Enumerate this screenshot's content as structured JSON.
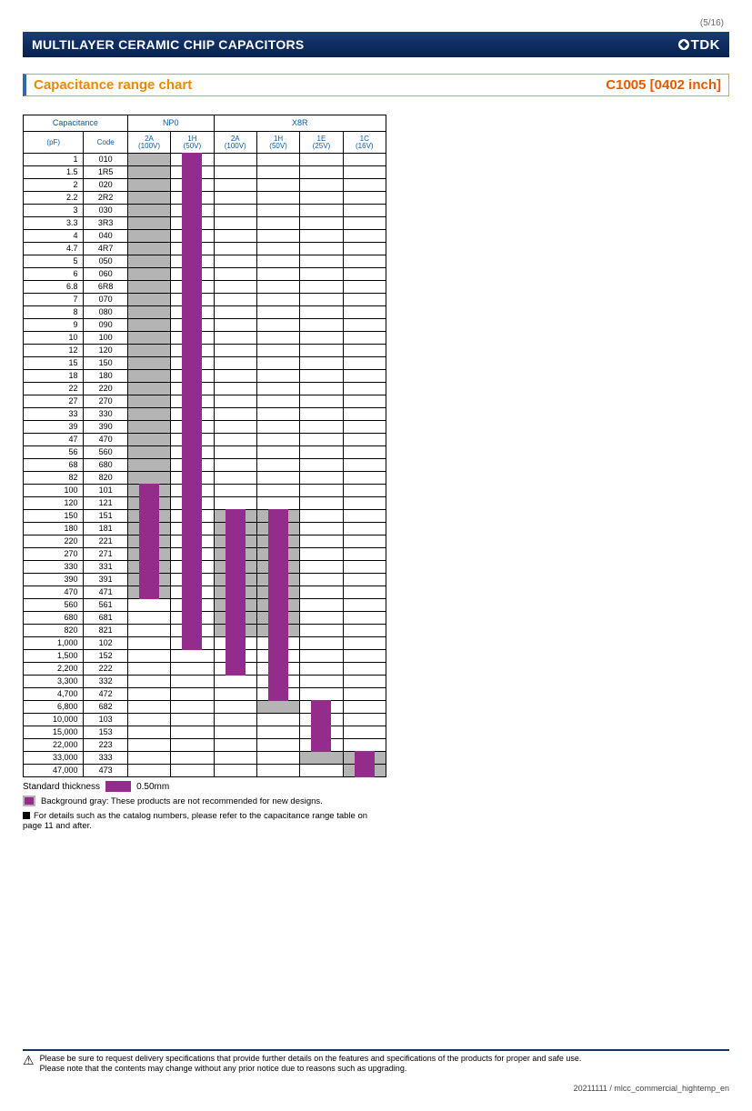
{
  "page_number": "(5/16)",
  "header_title": "MULTILAYER CERAMIC CHIP CAPACITORS",
  "header_logo": "TDK",
  "sub_left": "Capacitance range chart",
  "sub_right": "C1005 [0402 inch]",
  "colors": {
    "bar": "#942c8b",
    "gray": "#b4b4b4",
    "header_bg": "#0e2d60",
    "accent_blue": "#0b5aa8",
    "accent_orange": "#e88b00",
    "accent_red": "#e85a00"
  },
  "table": {
    "groups": [
      {
        "label": "Capacitance",
        "span": 2,
        "subs": [
          {
            "label": "(pF)"
          },
          {
            "label": "Code"
          }
        ]
      },
      {
        "label": "NP0",
        "span": 2,
        "subs": [
          {
            "label": "2A\n(100V)"
          },
          {
            "label": "1H\n(50V)"
          }
        ]
      },
      {
        "label": "X8R",
        "span": 4,
        "subs": [
          {
            "label": "2A\n(100V)"
          },
          {
            "label": "1H\n(50V)"
          },
          {
            "label": "1E\n(25V)"
          },
          {
            "label": "1C\n(16V)"
          }
        ]
      }
    ],
    "rows": [
      {
        "pf": "1",
        "code": "010",
        "c": [
          {
            "g": true
          },
          {
            "b": true
          },
          {},
          {},
          {},
          {}
        ]
      },
      {
        "pf": "1.5",
        "code": "1R5",
        "c": [
          {
            "g": true
          },
          {
            "b": true
          },
          {},
          {},
          {},
          {}
        ]
      },
      {
        "pf": "2",
        "code": "020",
        "c": [
          {
            "g": true
          },
          {
            "b": true
          },
          {},
          {},
          {},
          {}
        ]
      },
      {
        "pf": "2.2",
        "code": "2R2",
        "c": [
          {
            "g": true
          },
          {
            "b": true
          },
          {},
          {},
          {},
          {}
        ]
      },
      {
        "pf": "3",
        "code": "030",
        "c": [
          {
            "g": true
          },
          {
            "b": true
          },
          {},
          {},
          {},
          {}
        ]
      },
      {
        "pf": "3.3",
        "code": "3R3",
        "c": [
          {
            "g": true
          },
          {
            "b": true
          },
          {},
          {},
          {},
          {}
        ]
      },
      {
        "pf": "4",
        "code": "040",
        "c": [
          {
            "g": true
          },
          {
            "b": true
          },
          {},
          {},
          {},
          {}
        ]
      },
      {
        "pf": "4.7",
        "code": "4R7",
        "c": [
          {
            "g": true
          },
          {
            "b": true
          },
          {},
          {},
          {},
          {}
        ]
      },
      {
        "pf": "5",
        "code": "050",
        "c": [
          {
            "g": true
          },
          {
            "b": true
          },
          {},
          {},
          {},
          {}
        ]
      },
      {
        "pf": "6",
        "code": "060",
        "c": [
          {
            "g": true
          },
          {
            "b": true
          },
          {},
          {},
          {},
          {}
        ]
      },
      {
        "pf": "6.8",
        "code": "6R8",
        "c": [
          {
            "g": true
          },
          {
            "b": true
          },
          {},
          {},
          {},
          {}
        ]
      },
      {
        "pf": "7",
        "code": "070",
        "c": [
          {
            "g": true
          },
          {
            "b": true
          },
          {},
          {},
          {},
          {}
        ]
      },
      {
        "pf": "8",
        "code": "080",
        "c": [
          {
            "g": true
          },
          {
            "b": true
          },
          {},
          {},
          {},
          {}
        ]
      },
      {
        "pf": "9",
        "code": "090",
        "c": [
          {
            "g": true
          },
          {
            "b": true
          },
          {},
          {},
          {},
          {}
        ]
      },
      {
        "pf": "10",
        "code": "100",
        "c": [
          {
            "g": true
          },
          {
            "b": true
          },
          {},
          {},
          {},
          {}
        ]
      },
      {
        "pf": "12",
        "code": "120",
        "c": [
          {
            "g": true
          },
          {
            "b": true
          },
          {},
          {},
          {},
          {}
        ]
      },
      {
        "pf": "15",
        "code": "150",
        "c": [
          {
            "g": true
          },
          {
            "b": true
          },
          {},
          {},
          {},
          {}
        ]
      },
      {
        "pf": "18",
        "code": "180",
        "c": [
          {
            "g": true
          },
          {
            "b": true
          },
          {},
          {},
          {},
          {}
        ]
      },
      {
        "pf": "22",
        "code": "220",
        "c": [
          {
            "g": true
          },
          {
            "b": true
          },
          {},
          {},
          {},
          {}
        ]
      },
      {
        "pf": "27",
        "code": "270",
        "c": [
          {
            "g": true
          },
          {
            "b": true
          },
          {},
          {},
          {},
          {}
        ]
      },
      {
        "pf": "33",
        "code": "330",
        "c": [
          {
            "g": true
          },
          {
            "b": true
          },
          {},
          {},
          {},
          {}
        ]
      },
      {
        "pf": "39",
        "code": "390",
        "c": [
          {
            "g": true
          },
          {
            "b": true
          },
          {},
          {},
          {},
          {}
        ]
      },
      {
        "pf": "47",
        "code": "470",
        "c": [
          {
            "g": true
          },
          {
            "b": true
          },
          {},
          {},
          {},
          {}
        ]
      },
      {
        "pf": "56",
        "code": "560",
        "c": [
          {
            "g": true
          },
          {
            "b": true
          },
          {},
          {},
          {},
          {}
        ]
      },
      {
        "pf": "68",
        "code": "680",
        "c": [
          {
            "g": true
          },
          {
            "b": true
          },
          {},
          {},
          {},
          {}
        ]
      },
      {
        "pf": "82",
        "code": "820",
        "c": [
          {
            "g": true
          },
          {
            "b": true
          },
          {},
          {},
          {},
          {}
        ]
      },
      {
        "pf": "100",
        "code": "101",
        "c": [
          {
            "g": true,
            "b": true
          },
          {
            "b": true
          },
          {},
          {},
          {},
          {}
        ]
      },
      {
        "pf": "120",
        "code": "121",
        "c": [
          {
            "g": true,
            "b": true
          },
          {
            "b": true
          },
          {},
          {},
          {},
          {}
        ]
      },
      {
        "pf": "150",
        "code": "151",
        "c": [
          {
            "g": true,
            "b": true
          },
          {
            "b": true
          },
          {
            "g": true,
            "b": true
          },
          {
            "g": true,
            "b": true
          },
          {},
          {}
        ]
      },
      {
        "pf": "180",
        "code": "181",
        "c": [
          {
            "g": true,
            "b": true
          },
          {
            "b": true
          },
          {
            "g": true,
            "b": true
          },
          {
            "g": true,
            "b": true
          },
          {},
          {}
        ]
      },
      {
        "pf": "220",
        "code": "221",
        "c": [
          {
            "g": true,
            "b": true
          },
          {
            "b": true
          },
          {
            "g": true,
            "b": true
          },
          {
            "g": true,
            "b": true
          },
          {},
          {}
        ]
      },
      {
        "pf": "270",
        "code": "271",
        "c": [
          {
            "g": true,
            "b": true
          },
          {
            "b": true
          },
          {
            "g": true,
            "b": true
          },
          {
            "g": true,
            "b": true
          },
          {},
          {}
        ]
      },
      {
        "pf": "330",
        "code": "331",
        "c": [
          {
            "g": true,
            "b": true
          },
          {
            "b": true
          },
          {
            "g": true,
            "b": true
          },
          {
            "g": true,
            "b": true
          },
          {},
          {}
        ]
      },
      {
        "pf": "390",
        "code": "391",
        "c": [
          {
            "g": true,
            "b": true
          },
          {
            "b": true
          },
          {
            "g": true,
            "b": true
          },
          {
            "g": true,
            "b": true
          },
          {},
          {}
        ]
      },
      {
        "pf": "470",
        "code": "471",
        "c": [
          {
            "g": true,
            "b": true
          },
          {
            "b": true
          },
          {
            "g": true,
            "b": true
          },
          {
            "g": true,
            "b": true
          },
          {},
          {}
        ]
      },
      {
        "pf": "560",
        "code": "561",
        "c": [
          {},
          {
            "b": true
          },
          {
            "g": true,
            "b": true
          },
          {
            "g": true,
            "b": true
          },
          {},
          {}
        ]
      },
      {
        "pf": "680",
        "code": "681",
        "c": [
          {},
          {
            "b": true
          },
          {
            "g": true,
            "b": true
          },
          {
            "g": true,
            "b": true
          },
          {},
          {}
        ]
      },
      {
        "pf": "820",
        "code": "821",
        "c": [
          {},
          {
            "b": true
          },
          {
            "g": true,
            "b": true
          },
          {
            "g": true,
            "b": true
          },
          {},
          {}
        ]
      },
      {
        "pf": "1,000",
        "code": "102",
        "c": [
          {},
          {
            "b": true
          },
          {
            "b": true
          },
          {
            "b": true
          },
          {},
          {}
        ]
      },
      {
        "pf": "1,500",
        "code": "152",
        "c": [
          {},
          {},
          {
            "b": true
          },
          {
            "b": true
          },
          {},
          {}
        ]
      },
      {
        "pf": "2,200",
        "code": "222",
        "c": [
          {},
          {},
          {
            "b": true
          },
          {
            "b": true
          },
          {},
          {}
        ]
      },
      {
        "pf": "3,300",
        "code": "332",
        "c": [
          {},
          {},
          {},
          {
            "b": true
          },
          {},
          {}
        ]
      },
      {
        "pf": "4,700",
        "code": "472",
        "c": [
          {},
          {},
          {},
          {
            "b": true
          },
          {},
          {}
        ]
      },
      {
        "pf": "6,800",
        "code": "682",
        "c": [
          {},
          {},
          {},
          {
            "g": true
          },
          {
            "b": true
          },
          {}
        ]
      },
      {
        "pf": "10,000",
        "code": "103",
        "c": [
          {},
          {},
          {},
          {},
          {
            "b": true
          },
          {}
        ]
      },
      {
        "pf": "15,000",
        "code": "153",
        "c": [
          {},
          {},
          {},
          {},
          {
            "b": true
          },
          {}
        ]
      },
      {
        "pf": "22,000",
        "code": "223",
        "c": [
          {},
          {},
          {},
          {},
          {
            "b": true
          },
          {}
        ]
      },
      {
        "pf": "33,000",
        "code": "333",
        "c": [
          {},
          {},
          {},
          {},
          {
            "g": true
          },
          {
            "g": true,
            "b": true
          }
        ]
      },
      {
        "pf": "47,000",
        "code": "473",
        "c": [
          {},
          {},
          {},
          {},
          {},
          {
            "g": true,
            "b": true
          }
        ]
      }
    ]
  },
  "legend": {
    "thickness_label": "Standard thickness",
    "thickness_value": "0.50mm",
    "gray_note": "Background gray: These products are not recommended for new designs.",
    "detail_note": "For details such as the catalog numbers, please refer to the capacitance range table on page 11 and after."
  },
  "footer": {
    "warn1": "Please be sure to request delivery specifications that provide further details on the features and specifications of the products for proper and safe use.",
    "warn2": "Please note that the contents may change without any prior notice due to reasons such as upgrading.",
    "docid": "20211111 / mlcc_commercial_hightemp_en"
  }
}
